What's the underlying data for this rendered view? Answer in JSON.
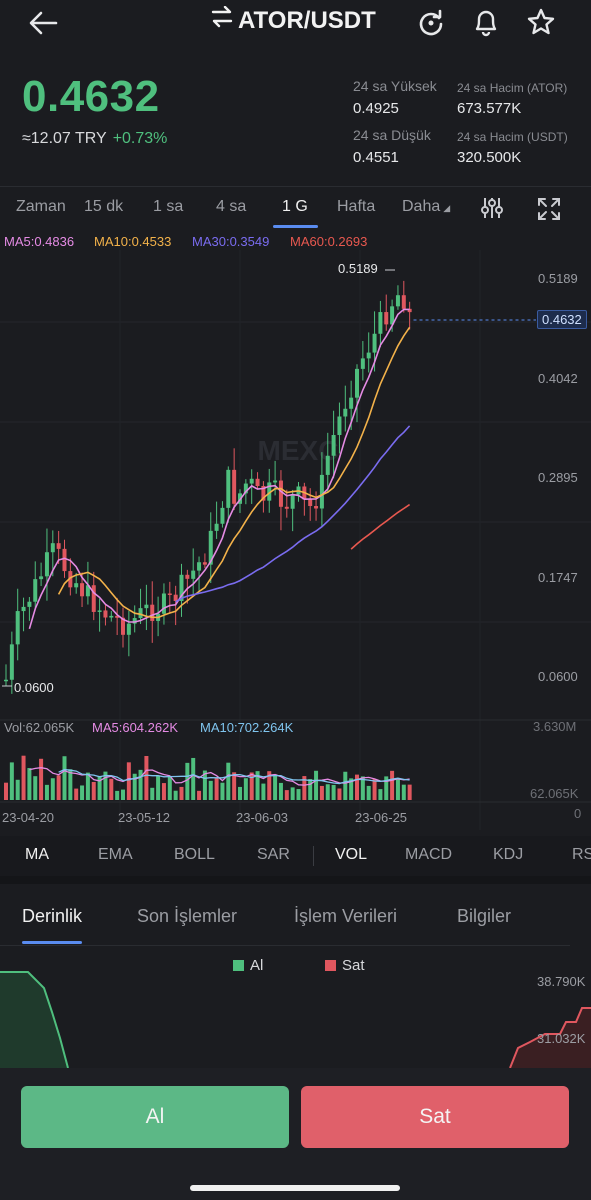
{
  "header": {
    "pair": "ATOR/USDT",
    "back_icon": "arrow-left-icon",
    "swap_icon": "swap-icon",
    "refresh_icon": "refresh-icon",
    "bell_icon": "bell-icon",
    "star_icon": "star-icon"
  },
  "ticker": {
    "price": "0.4632",
    "fiat": "≈12.07 TRY",
    "change": "+0.73%"
  },
  "stats": {
    "high_label": "24 sa Yüksek",
    "high_value": "0.4925",
    "low_label": "24 sa Düşük",
    "low_value": "0.4551",
    "vol_base_label": "24 sa Hacim (ATOR)",
    "vol_base_value": "673.577K",
    "vol_quote_label": "24 sa Hacim  (USDT)",
    "vol_quote_value": "320.500K"
  },
  "time_tabs": [
    "Zaman",
    "15 dk",
    "1 sa",
    "4 sa",
    "1 G",
    "Hafta",
    "Daha"
  ],
  "active_time_tab": "1 G",
  "ma_labels": {
    "ma5": "MA5:0.4836",
    "ma10": "MA10:0.4533",
    "ma30": "MA30:0.3549",
    "ma60": "MA60:0.2693"
  },
  "price_axis": [
    "0.5189",
    "0.4042",
    "0.2895",
    "0.1747",
    "0.0600"
  ],
  "current_price_tag": "0.4632",
  "high_marker": "0.5189",
  "low_marker": "0.0600",
  "watermark": "MEXC",
  "volume": {
    "vol": "Vol:62.065K",
    "ma5": "MA5:604.262K",
    "ma10": "MA10:702.264K",
    "axis_top": "3.630M",
    "axis_current": "62.065K",
    "axis_zero": "0"
  },
  "date_axis": [
    "23-04-20",
    "23-05-12",
    "23-06-03",
    "23-06-25"
  ],
  "indicator_tabs": [
    "MA",
    "EMA",
    "BOLL",
    "SAR",
    "VOL",
    "MACD",
    "KDJ",
    "RS"
  ],
  "section_tabs": [
    "Derinlik",
    "Son İşlemler",
    "İşlem Verileri",
    "Bilgiler"
  ],
  "depth": {
    "buy_label": "Al",
    "sell_label": "Sat",
    "axis_top": "38.790K",
    "axis_mid": "31.032K"
  },
  "actions": {
    "buy": "Al",
    "sell": "Sat"
  },
  "colors": {
    "up": "#4fbf7e",
    "down": "#e0575f",
    "ma5": "#e58be4",
    "ma10": "#f3b24a",
    "ma30": "#7a6cf0",
    "ma60": "#e8584f",
    "accent": "#5a8cf0"
  }
}
